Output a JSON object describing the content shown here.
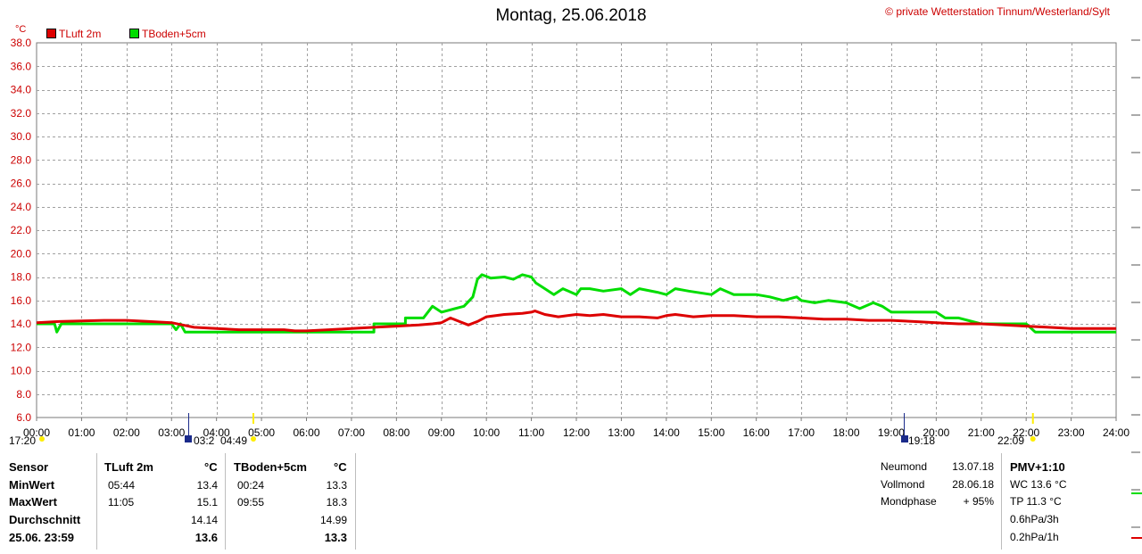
{
  "title": "Montag, 25.06.2018",
  "copyright": "© private Wetterstation Tinnum/Westerland/Sylt",
  "unit": "°C",
  "colors": {
    "tluft": "#dd0000",
    "tboden": "#00dd00",
    "axis_labels": "#cc0000",
    "grid": "#a0a0a0",
    "marker": "#ffee00"
  },
  "chart_data": {
    "type": "line",
    "ylim": [
      6.0,
      38.0
    ],
    "y_ticks": [
      "6.0",
      "8.0",
      "10.0",
      "12.0",
      "14.0",
      "16.0",
      "18.0",
      "20.0",
      "22.0",
      "24.0",
      "26.0",
      "28.0",
      "30.0",
      "32.0",
      "34.0",
      "36.0",
      "38.0"
    ],
    "x_ticks": [
      "00:00",
      "01:00",
      "02:00",
      "03:00",
      "04:00",
      "05:00",
      "06:00",
      "07:00",
      "08:00",
      "09:00",
      "10:00",
      "11:00",
      "12:00",
      "13:00",
      "14:00",
      "15:00",
      "16:00",
      "17:00",
      "18:00",
      "19:00",
      "20:00",
      "21:00",
      "22:00",
      "23:00",
      "24:00"
    ],
    "grid": true,
    "series": [
      {
        "name": "TLuft 2m",
        "color": "#dd0000",
        "x": [
          0,
          0.5,
          1,
          1.5,
          2,
          2.5,
          3,
          3.25,
          3.5,
          4,
          4.5,
          5,
          5.5,
          5.74,
          6,
          6.5,
          7,
          7.5,
          8,
          8.5,
          8.8,
          9,
          9.2,
          9.4,
          9.6,
          9.8,
          10,
          10.4,
          10.8,
          11,
          11.08,
          11.3,
          11.6,
          12,
          12.3,
          12.6,
          13,
          13.4,
          13.8,
          14,
          14.2,
          14.6,
          15,
          15.5,
          16,
          16.5,
          17,
          17.5,
          18,
          18.5,
          19,
          19.5,
          20,
          20.5,
          21,
          21.5,
          22,
          22.5,
          23,
          23.5,
          24
        ],
        "y": [
          14.1,
          14.2,
          14.25,
          14.3,
          14.3,
          14.2,
          14.1,
          13.9,
          13.7,
          13.6,
          13.5,
          13.5,
          13.5,
          13.4,
          13.4,
          13.5,
          13.6,
          13.7,
          13.8,
          13.9,
          14.0,
          14.1,
          14.5,
          14.2,
          13.9,
          14.2,
          14.6,
          14.8,
          14.9,
          15.0,
          15.1,
          14.8,
          14.6,
          14.8,
          14.7,
          14.8,
          14.6,
          14.6,
          14.5,
          14.7,
          14.8,
          14.6,
          14.7,
          14.7,
          14.6,
          14.6,
          14.5,
          14.4,
          14.4,
          14.3,
          14.3,
          14.2,
          14.1,
          14.0,
          14.0,
          13.9,
          13.8,
          13.7,
          13.6,
          13.6,
          13.6
        ]
      },
      {
        "name": "TBoden+5cm",
        "color": "#00dd00",
        "x": [
          0,
          0.4,
          0.45,
          0.55,
          1,
          2,
          3,
          3.0,
          3.1,
          3.2,
          3.3,
          4,
          5,
          6,
          6.3,
          7,
          7.5,
          7.5,
          8,
          8.2,
          8.2,
          8.6,
          8.8,
          9,
          9.5,
          9.7,
          9.8,
          9.9,
          10.1,
          10.4,
          10.6,
          10.8,
          11,
          11.1,
          11.3,
          11.5,
          11.7,
          12,
          12.1,
          12.3,
          12.6,
          13,
          13.2,
          13.4,
          13.8,
          14,
          14.2,
          14.5,
          15,
          15.2,
          15.5,
          16,
          16.3,
          16.6,
          16.9,
          17,
          17.3,
          17.6,
          18,
          18.3,
          18.6,
          18.8,
          19,
          19.5,
          20,
          20.2,
          20.5,
          21,
          21.5,
          22,
          22.2,
          23,
          24
        ],
        "y": [
          14.0,
          14.0,
          13.3,
          14.0,
          14.0,
          14.0,
          14.0,
          14.0,
          13.5,
          14.0,
          13.3,
          13.3,
          13.3,
          13.3,
          13.3,
          13.3,
          13.3,
          14.0,
          14.0,
          14.0,
          14.5,
          14.5,
          15.5,
          15.0,
          15.5,
          16.3,
          17.8,
          18.2,
          17.9,
          18.0,
          17.8,
          18.2,
          18.0,
          17.5,
          17.0,
          16.5,
          17.0,
          16.5,
          17.0,
          17.0,
          16.8,
          17.0,
          16.5,
          17.0,
          16.7,
          16.5,
          17.0,
          16.8,
          16.5,
          17.0,
          16.5,
          16.5,
          16.3,
          16.0,
          16.3,
          16.0,
          15.8,
          16.0,
          15.8,
          15.3,
          15.8,
          15.5,
          15.0,
          15.0,
          15.0,
          14.5,
          14.5,
          14.0,
          14.0,
          14.0,
          13.3,
          13.3,
          13.3
        ]
      }
    ]
  },
  "events": {
    "sunrise": {
      "time_label": "04:49",
      "hours": 4.82
    },
    "sunset": {
      "time_label": "22:09",
      "hours": 22.15
    },
    "moonrise_label": "03:2",
    "moonset_label": "19:18",
    "left_label": "17:20"
  },
  "stats": {
    "sensor_header": "Sensor",
    "row_labels": [
      "MinWert",
      "MaxWert",
      "Durchschnitt",
      "25.06. 23:59"
    ],
    "tluft": {
      "header": "TLuft 2m",
      "unit": "°C",
      "min_time": "05:44",
      "min_val": "13.4",
      "max_time": "11:05",
      "max_val": "15.1",
      "avg": "14.14",
      "current": "13.6"
    },
    "tboden": {
      "header": "TBoden+5cm",
      "unit": "°C",
      "min_time": "00:24",
      "min_val": "13.3",
      "max_time": "09:55",
      "max_val": "18.3",
      "avg": "14.99",
      "current": "13.3"
    }
  },
  "moon": {
    "rows": [
      {
        "label": "Neumond",
        "value": "13.07.18"
      },
      {
        "label": "Vollmond",
        "value": "28.06.18"
      },
      {
        "label": "Mondphase",
        "value": "+ 95%"
      }
    ]
  },
  "pmv": {
    "title": "PMV+1:10",
    "lines": [
      "WC 13.6 °C",
      "TP 11.3 °C",
      "0.6hPa/3h",
      "0.2hPa/1h"
    ]
  }
}
